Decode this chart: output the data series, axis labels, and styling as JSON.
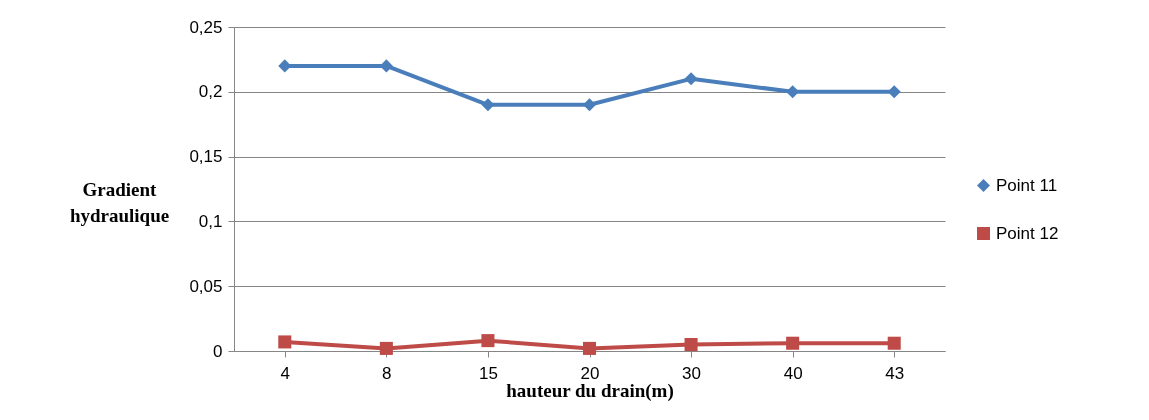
{
  "chart_data": {
    "type": "line",
    "xlabel": "hauteur du drain(m)",
    "ylabel": "Gradient hydraulique",
    "categories": [
      "4",
      "8",
      "15",
      "20",
      "30",
      "40",
      "43"
    ],
    "series": [
      {
        "name": "Point 11",
        "color": "#4a7ebb",
        "marker": "diamond",
        "values": [
          0.22,
          0.22,
          0.19,
          0.19,
          0.21,
          0.2,
          0.2
        ]
      },
      {
        "name": "Point 12",
        "color": "#be4b48",
        "marker": "square",
        "values": [
          0.007,
          0.002,
          0.008,
          0.002,
          0.005,
          0.006,
          0.006
        ]
      }
    ],
    "ylim": [
      0,
      0.25
    ],
    "yticks": [
      0,
      {
        "value": 0.05,
        "label": "0,05"
      },
      {
        "value": 0.1,
        "label": "0,1"
      },
      {
        "value": 0.15,
        "label": "0,15"
      },
      {
        "value": 0.2,
        "label": "0,2"
      },
      {
        "value": 0.25,
        "label": "0,25"
      }
    ],
    "grid": "y",
    "legend": "right",
    "line_style": "solid"
  }
}
